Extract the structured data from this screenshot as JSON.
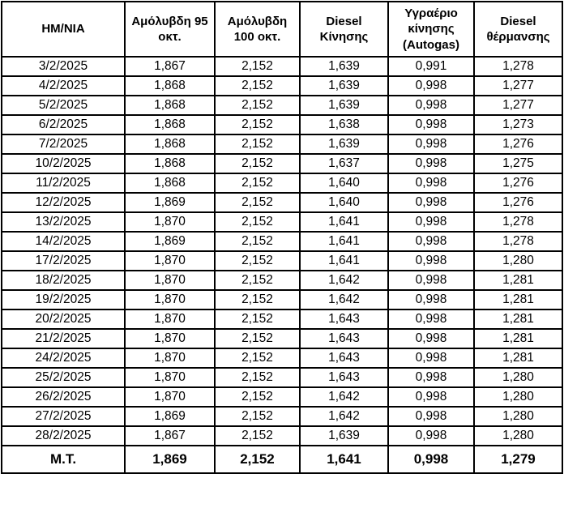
{
  "colors": {
    "background": "#ffffff",
    "border": "#000000",
    "text": "#000000"
  },
  "chart_data": {
    "type": "table",
    "title": "",
    "columns": [
      "ΗΜ/ΝΙΑ",
      "Αμόλυβδη 95 οκτ.",
      "Αμόλυβδη 100 οκτ.",
      "Diesel Κίνησης",
      "Υγραέριο κίνησης (Autogas)",
      "Diesel θέρμανσης"
    ],
    "rows": [
      [
        "3/2/2025",
        "1,867",
        "2,152",
        "1,639",
        "0,991",
        "1,278"
      ],
      [
        "4/2/2025",
        "1,868",
        "2,152",
        "1,639",
        "0,998",
        "1,277"
      ],
      [
        "5/2/2025",
        "1,868",
        "2,152",
        "1,639",
        "0,998",
        "1,277"
      ],
      [
        "6/2/2025",
        "1,868",
        "2,152",
        "1,638",
        "0,998",
        "1,273"
      ],
      [
        "7/2/2025",
        "1,868",
        "2,152",
        "1,639",
        "0,998",
        "1,276"
      ],
      [
        "10/2/2025",
        "1,868",
        "2,152",
        "1,637",
        "0,998",
        "1,275"
      ],
      [
        "11/2/2025",
        "1,868",
        "2,152",
        "1,640",
        "0,998",
        "1,276"
      ],
      [
        "12/2/2025",
        "1,869",
        "2,152",
        "1,640",
        "0,998",
        "1,276"
      ],
      [
        "13/2/2025",
        "1,870",
        "2,152",
        "1,641",
        "0,998",
        "1,278"
      ],
      [
        "14/2/2025",
        "1,869",
        "2,152",
        "1,641",
        "0,998",
        "1,278"
      ],
      [
        "17/2/2025",
        "1,870",
        "2,152",
        "1,641",
        "0,998",
        "1,280"
      ],
      [
        "18/2/2025",
        "1,870",
        "2,152",
        "1,642",
        "0,998",
        "1,281"
      ],
      [
        "19/2/2025",
        "1,870",
        "2,152",
        "1,642",
        "0,998",
        "1,281"
      ],
      [
        "20/2/2025",
        "1,870",
        "2,152",
        "1,643",
        "0,998",
        "1,281"
      ],
      [
        "21/2/2025",
        "1,870",
        "2,152",
        "1,643",
        "0,998",
        "1,281"
      ],
      [
        "24/2/2025",
        "1,870",
        "2,152",
        "1,643",
        "0,998",
        "1,281"
      ],
      [
        "25/2/2025",
        "1,870",
        "2,152",
        "1,643",
        "0,998",
        "1,280"
      ],
      [
        "26/2/2025",
        "1,870",
        "2,152",
        "1,642",
        "0,998",
        "1,280"
      ],
      [
        "27/2/2025",
        "1,869",
        "2,152",
        "1,642",
        "0,998",
        "1,280"
      ],
      [
        "28/2/2025",
        "1,867",
        "2,152",
        "1,639",
        "0,998",
        "1,280"
      ]
    ],
    "summary_row": [
      "Μ.Τ.",
      "1,869",
      "2,152",
      "1,641",
      "0,998",
      "1,279"
    ],
    "decimal_separator": ",",
    "notes": "Daily fuel prices table, February 2025; last row is the monthly average (Μ.Τ.)"
  }
}
